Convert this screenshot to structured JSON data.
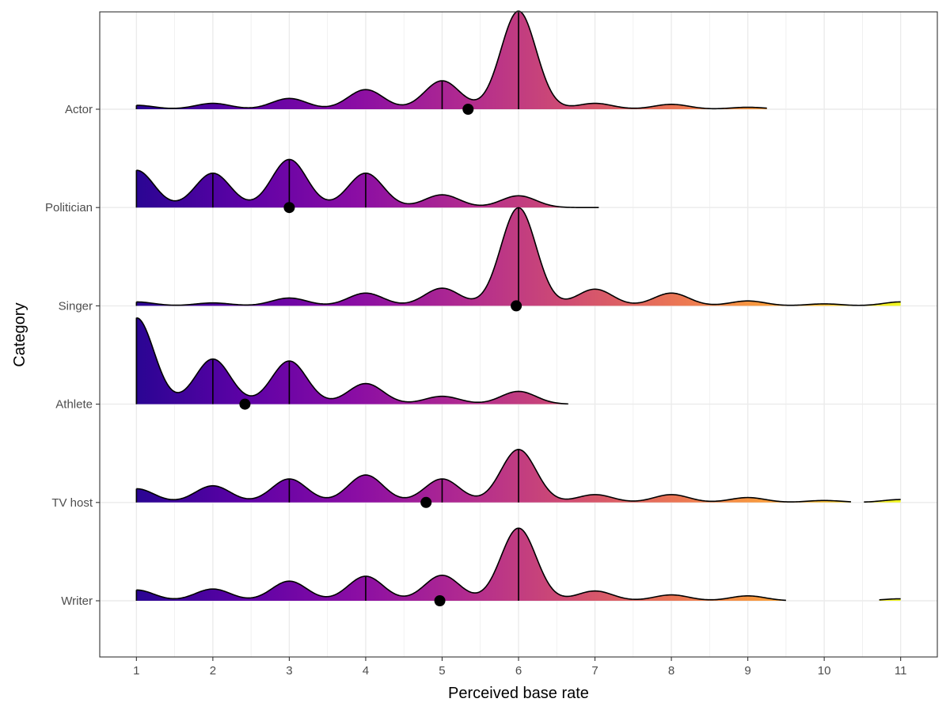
{
  "chart_data": {
    "type": "ridgeline",
    "xlabel": "Perceived base rate",
    "ylabel": "Category",
    "xlim": [
      0.52,
      11.48
    ],
    "x_ticks": [
      1,
      2,
      3,
      4,
      5,
      6,
      7,
      8,
      9,
      10,
      11
    ],
    "grid": true,
    "fill_gradient": {
      "along": "x",
      "colors": [
        "#2a0593",
        "#5e01a6",
        "#8a0da4",
        "#b12a90",
        "#d14e71",
        "#ec7853",
        "#fca636",
        "#f0f921"
      ]
    },
    "categories": [
      "Writer",
      "TV host",
      "Athlete",
      "Singer",
      "Politician",
      "Actor"
    ],
    "series": [
      {
        "name": "Actor",
        "x_max": 9.25,
        "peaks": [
          [
            1,
            0.04
          ],
          [
            2,
            0.06
          ],
          [
            3,
            0.11
          ],
          [
            4,
            0.2
          ],
          [
            5,
            0.29
          ],
          [
            6,
            1.0
          ],
          [
            7,
            0.06
          ],
          [
            8,
            0.05
          ],
          [
            9,
            0.02
          ]
        ],
        "quantile_lines": [
          5,
          6
        ],
        "mean": 5.34
      },
      {
        "name": "Politician",
        "x_max": 7.05,
        "peaks": [
          [
            1,
            0.38
          ],
          [
            2,
            0.35
          ],
          [
            3,
            0.49
          ],
          [
            4,
            0.35
          ],
          [
            5,
            0.13
          ],
          [
            6,
            0.12
          ]
        ],
        "quantile_lines": [
          2,
          3,
          4
        ],
        "mean": 3.0
      },
      {
        "name": "Singer",
        "x_max": 11.0,
        "peaks": [
          [
            1,
            0.04
          ],
          [
            2,
            0.03
          ],
          [
            3,
            0.08
          ],
          [
            4,
            0.13
          ],
          [
            5,
            0.18
          ],
          [
            6,
            1.0
          ],
          [
            7,
            0.17
          ],
          [
            8,
            0.13
          ],
          [
            9,
            0.05
          ],
          [
            10,
            0.02
          ],
          [
            11,
            0.04
          ]
        ],
        "quantile_lines": [
          6
        ],
        "mean": 5.97
      },
      {
        "name": "Athlete",
        "x_max": 6.65,
        "peaks": [
          [
            1,
            0.88
          ],
          [
            2,
            0.46
          ],
          [
            3,
            0.44
          ],
          [
            4,
            0.21
          ],
          [
            5,
            0.08
          ],
          [
            6,
            0.13
          ]
        ],
        "quantile_lines": [
          1,
          2,
          3
        ],
        "mean": 2.42
      },
      {
        "name": "TV host",
        "x_max": 11.0,
        "gaps": [
          [
            10.35,
            10.52
          ]
        ],
        "peaks": [
          [
            1,
            0.14
          ],
          [
            2,
            0.17
          ],
          [
            3,
            0.24
          ],
          [
            4,
            0.28
          ],
          [
            5,
            0.24
          ],
          [
            6,
            0.54
          ],
          [
            7,
            0.08
          ],
          [
            8,
            0.08
          ],
          [
            9,
            0.05
          ],
          [
            10,
            0.02
          ],
          [
            11,
            0.03
          ]
        ],
        "quantile_lines": [
          3,
          5,
          6
        ],
        "mean": 4.79
      },
      {
        "name": "Writer",
        "x_max": 11.0,
        "gaps": [
          [
            9.5,
            10.72
          ]
        ],
        "peaks": [
          [
            1,
            0.11
          ],
          [
            2,
            0.12
          ],
          [
            3,
            0.2
          ],
          [
            4,
            0.25
          ],
          [
            5,
            0.26
          ],
          [
            6,
            0.74
          ],
          [
            7,
            0.1
          ],
          [
            8,
            0.06
          ],
          [
            9,
            0.05
          ],
          [
            11,
            0.02
          ]
        ],
        "quantile_lines": [
          4,
          6
        ],
        "mean": 4.97
      }
    ]
  }
}
